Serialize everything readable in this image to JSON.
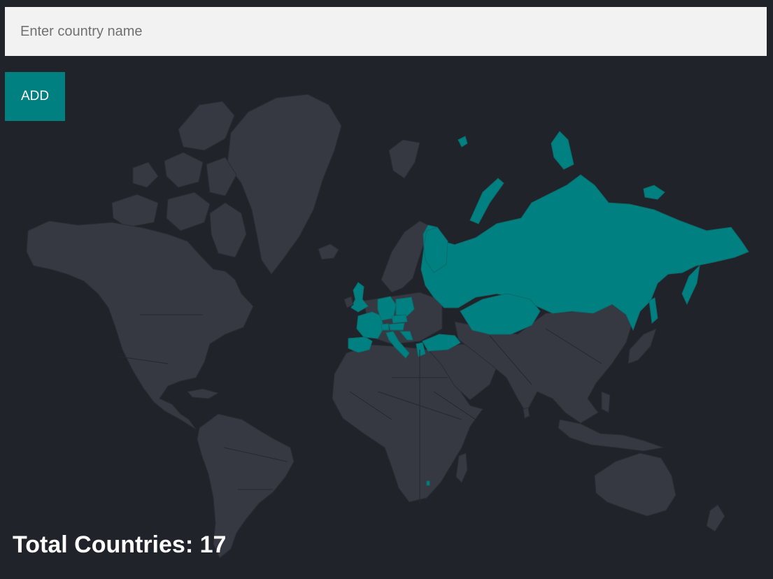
{
  "search": {
    "placeholder": "Enter country name",
    "value": ""
  },
  "controls": {
    "add_label": "ADD"
  },
  "stats": {
    "total_label": "Total Countries: ",
    "total_value": "17"
  },
  "map": {
    "land_color": "#363842",
    "visited_color": "#008080",
    "background_color": "#21232b"
  }
}
